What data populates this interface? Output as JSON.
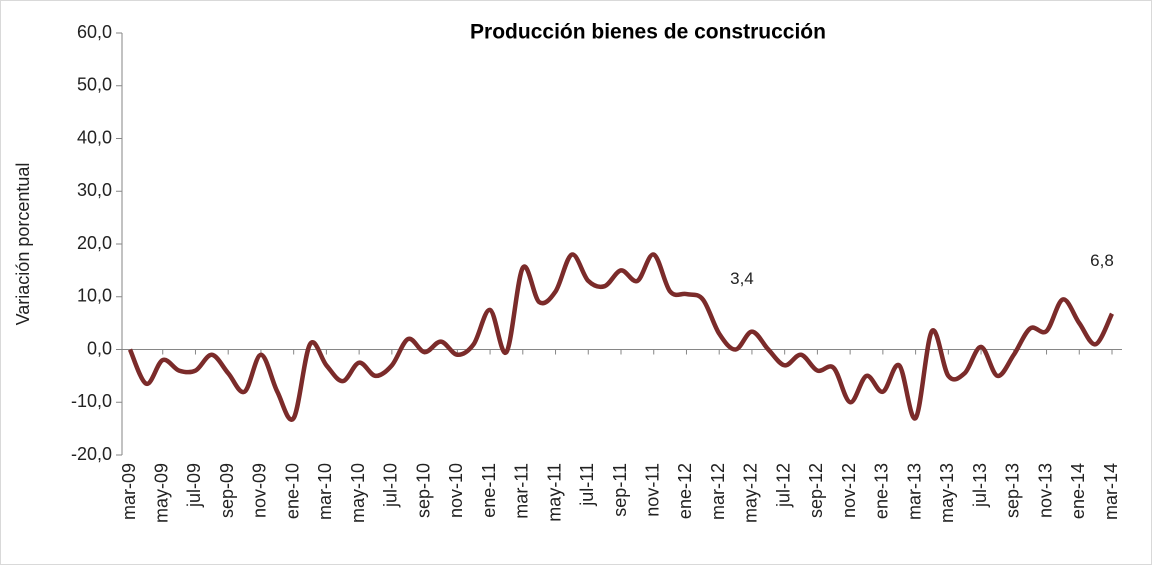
{
  "chart_data": {
    "type": "line",
    "title": "Producción bienes de construcción",
    "y_label": "Variación porcentual",
    "categories": [
      "mar-09",
      null,
      "may-09",
      null,
      "jul-09",
      null,
      "sep-09",
      null,
      "nov-09",
      null,
      "ene-10",
      null,
      "mar-10",
      null,
      "may-10",
      null,
      "jul-10",
      null,
      "sep-10",
      null,
      "nov-10",
      null,
      "ene-11",
      null,
      "mar-11",
      null,
      "may-11",
      null,
      "jul-11",
      null,
      "sep-11",
      null,
      "nov-11",
      null,
      "ene-12",
      null,
      "mar-12",
      null,
      "may-12",
      null,
      "jul-12",
      null,
      "sep-12",
      null,
      "nov-12",
      null,
      "ene-13",
      null,
      "mar-13",
      null,
      "may-13",
      null,
      "jul-13",
      null,
      "sep-13",
      null,
      "nov-13",
      null,
      "ene-14",
      null,
      "mar-14"
    ],
    "series": [
      {
        "color": "#7b2b2a",
        "values": [
          0,
          -6.5,
          -2,
          -4,
          -4,
          -1,
          -4.5,
          -8,
          -1,
          -8,
          -13,
          1,
          -3,
          -6,
          -2.5,
          -5,
          -3,
          2,
          -0.5,
          1.5,
          -1,
          1,
          7.5,
          -0.5,
          15.5,
          9,
          11,
          18,
          13,
          12,
          15,
          13,
          18,
          11,
          10.5,
          9.5,
          3,
          0,
          3.4,
          0,
          -3,
          -1,
          -4,
          -3.5,
          -10,
          -5,
          -8,
          -3,
          -13,
          3.5,
          -5,
          -4.5,
          0.5,
          -5,
          -1,
          4,
          3.5,
          9.5,
          5,
          1,
          6.8
        ],
        "value_labels": [
          null,
          null,
          null,
          null,
          null,
          null,
          null,
          null,
          null,
          null,
          null,
          null,
          null,
          null,
          null,
          null,
          null,
          null,
          null,
          null,
          null,
          null,
          null,
          null,
          null,
          null,
          null,
          null,
          null,
          null,
          null,
          null,
          null,
          null,
          null,
          null,
          null,
          null,
          "3,4",
          null,
          null,
          null,
          null,
          null,
          null,
          null,
          null,
          null,
          null,
          null,
          null,
          null,
          null,
          null,
          null,
          null,
          null,
          null,
          null,
          null,
          "6,8"
        ]
      }
    ],
    "ylim": [
      -20,
      60
    ],
    "yticks": [
      {
        "value": -20,
        "label": "-20,0"
      },
      {
        "value": -10,
        "label": "-10,0"
      },
      {
        "value": 0,
        "label": "0,0"
      },
      {
        "value": 10,
        "label": "10,0"
      },
      {
        "value": 20,
        "label": "20,0"
      },
      {
        "value": 30,
        "label": "30,0"
      },
      {
        "value": 40,
        "label": "40,0"
      },
      {
        "value": 50,
        "label": "50,0"
      },
      {
        "value": 60,
        "label": "60,0"
      }
    ]
  }
}
